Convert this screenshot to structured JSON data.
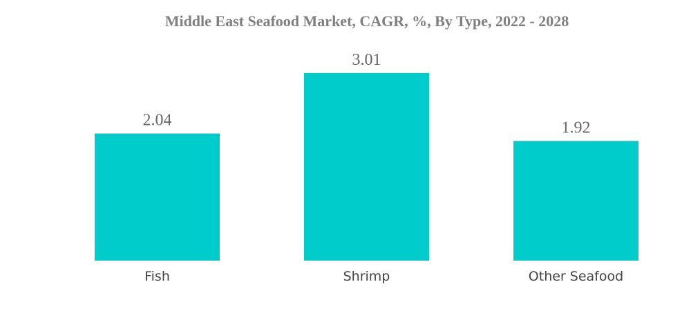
{
  "chart_data": {
    "type": "bar",
    "title": "Middle East Seafood Market, CAGR, %, By Type, 2022 - 2028",
    "categories": [
      "Fish",
      "Shrimp",
      "Other Seafood"
    ],
    "values": [
      2.04,
      3.01,
      1.92
    ],
    "color": "#00cccc"
  }
}
